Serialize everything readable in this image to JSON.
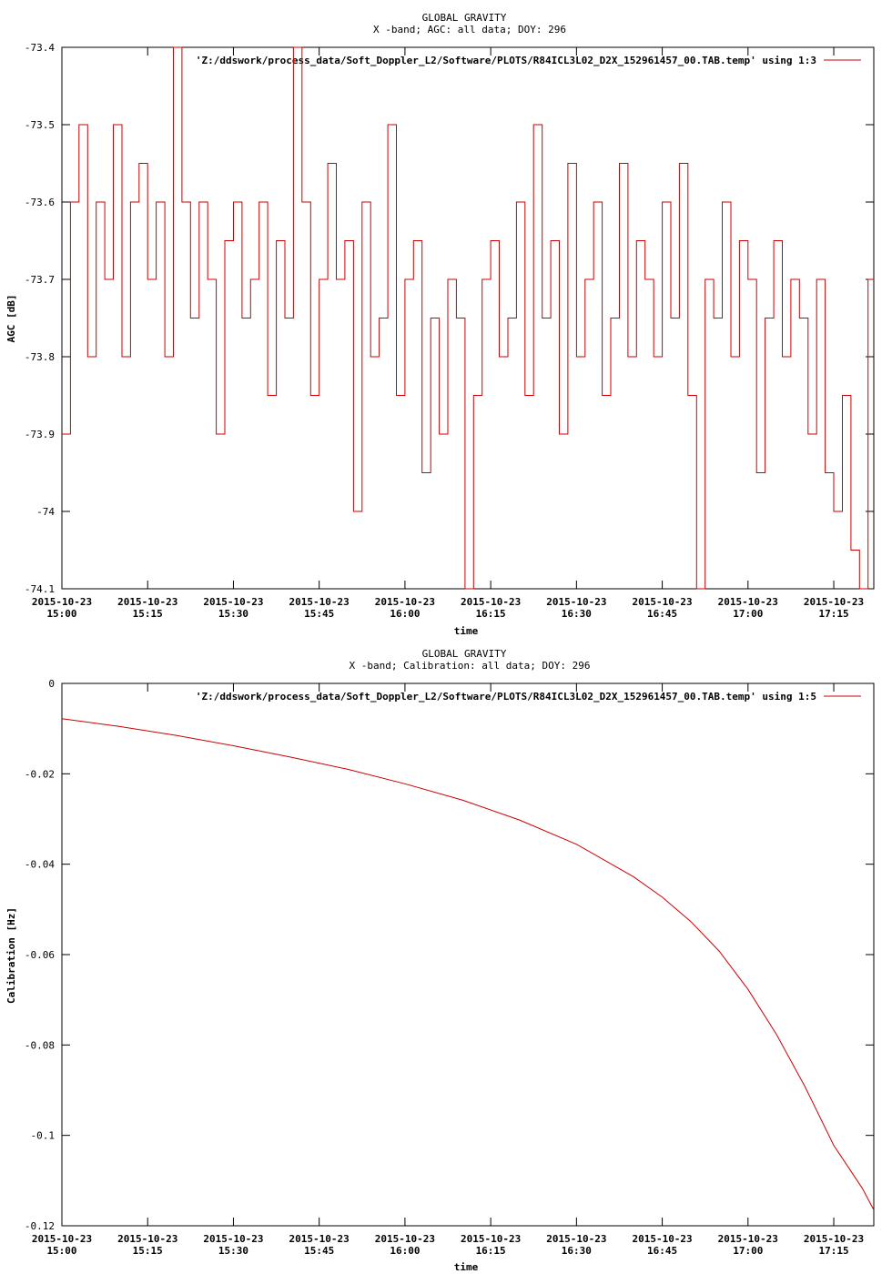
{
  "chart_data": [
    {
      "type": "line",
      "title": "GLOBAL GRAVITY",
      "subtitle": "X -band; AGC: all data; DOY: 296",
      "xlabel": "time",
      "ylabel": "AGC [dB]",
      "ylim": [
        -74.1,
        -73.4
      ],
      "yticks": [
        -74.1,
        -74,
        -73.9,
        -73.8,
        -73.7,
        -73.6,
        -73.5,
        -73.4
      ],
      "ytick_labels": [
        "-74.1",
        "-74",
        "-73.9",
        "-73.8",
        "-73.7",
        "-73.6",
        "-73.5",
        "-73.4"
      ],
      "xlim_minutes": [
        0,
        142
      ],
      "xticks_minutes": [
        0,
        15,
        30,
        45,
        60,
        75,
        90,
        105,
        120,
        135
      ],
      "xtick_labels": [
        [
          "2015-10-23",
          "15:00"
        ],
        [
          "2015-10-23",
          "15:15"
        ],
        [
          "2015-10-23",
          "15:30"
        ],
        [
          "2015-10-23",
          "15:45"
        ],
        [
          "2015-10-23",
          "16:00"
        ],
        [
          "2015-10-23",
          "16:15"
        ],
        [
          "2015-10-23",
          "16:30"
        ],
        [
          "2015-10-23",
          "16:45"
        ],
        [
          "2015-10-23",
          "17:00"
        ],
        [
          "2015-10-23",
          "17:15"
        ]
      ],
      "grid": false,
      "legend_position": "top-right",
      "series": [
        {
          "name": "'Z:/ddswork/process_data/Soft_Doppler_L2/Software/PLOTS/R84ICL3L02_D2X_152961457_00.TAB.temp' using 1:3",
          "color": "#cc0000",
          "style": "steps",
          "x_minutes": [
            0,
            1.5,
            3,
            4.5,
            6,
            7.5,
            9,
            10.5,
            12,
            13.5,
            15,
            16.5,
            18,
            19.5,
            21,
            22.5,
            24,
            25.5,
            27,
            28.5,
            30,
            31.5,
            33,
            34.5,
            36,
            37.5,
            39,
            40.5,
            42,
            43.5,
            45,
            46.5,
            48,
            49.5,
            51,
            52.5,
            54,
            55.5,
            57,
            58.5,
            60,
            61.5,
            63,
            64.5,
            66,
            67.5,
            69,
            70.5,
            72,
            73.5,
            75,
            76.5,
            78,
            79.5,
            81,
            82.5,
            84,
            85.5,
            87,
            88.5,
            90,
            91.5,
            93,
            94.5,
            96,
            97.5,
            99,
            100.5,
            102,
            103.5,
            105,
            106.5,
            108,
            109.5,
            111,
            112.5,
            114,
            115.5,
            117,
            118.5,
            120,
            121.5,
            123,
            124.5,
            126,
            127.5,
            129,
            130.5,
            132,
            133.5,
            135,
            136.5,
            138,
            139.5,
            141
          ],
          "values": [
            -73.9,
            -73.6,
            -73.5,
            -73.8,
            -73.6,
            -73.7,
            -73.5,
            -73.8,
            -73.6,
            -73.55,
            -73.7,
            -73.6,
            -73.8,
            -73.4,
            -73.6,
            -73.75,
            -73.6,
            -73.7,
            -73.9,
            -73.65,
            -73.6,
            -73.75,
            -73.7,
            -73.6,
            -73.85,
            -73.65,
            -73.75,
            -73.4,
            -73.6,
            -73.85,
            -73.7,
            -73.55,
            -73.7,
            -73.65,
            -74.0,
            -73.6,
            -73.8,
            -73.75,
            -73.5,
            -73.85,
            -73.7,
            -73.65,
            -73.95,
            -73.75,
            -73.9,
            -73.7,
            -73.75,
            -74.1,
            -73.85,
            -73.7,
            -73.65,
            -73.8,
            -73.75,
            -73.6,
            -73.85,
            -73.5,
            -73.75,
            -73.65,
            -73.9,
            -73.55,
            -73.8,
            -73.7,
            -73.6,
            -73.85,
            -73.75,
            -73.55,
            -73.8,
            -73.65,
            -73.7,
            -73.8,
            -73.6,
            -73.75,
            -73.55,
            -73.85,
            -74.1,
            -73.7,
            -73.75,
            -73.6,
            -73.8,
            -73.65,
            -73.7,
            -73.95,
            -73.75,
            -73.65,
            -73.8,
            -73.7,
            -73.75,
            -73.9,
            -73.7,
            -73.95,
            -74.0,
            -73.85,
            -74.05,
            -74.1,
            -73.7
          ]
        }
      ]
    },
    {
      "type": "line",
      "title": "GLOBAL GRAVITY",
      "subtitle": "X -band; Calibration: all data; DOY: 296",
      "xlabel": "time",
      "ylabel": "Calibration [Hz]",
      "ylim": [
        -0.12,
        0
      ],
      "yticks": [
        -0.12,
        -0.1,
        -0.08,
        -0.06,
        -0.04,
        -0.02,
        0
      ],
      "ytick_labels": [
        "-0.12",
        "-0.1",
        "-0.08",
        "-0.06",
        "-0.04",
        "-0.02",
        "0"
      ],
      "xlim_minutes": [
        0,
        142
      ],
      "xticks_minutes": [
        0,
        15,
        30,
        45,
        60,
        75,
        90,
        105,
        120,
        135
      ],
      "xtick_labels": [
        [
          "2015-10-23",
          "15:00"
        ],
        [
          "2015-10-23",
          "15:15"
        ],
        [
          "2015-10-23",
          "15:30"
        ],
        [
          "2015-10-23",
          "15:45"
        ],
        [
          "2015-10-23",
          "16:00"
        ],
        [
          "2015-10-23",
          "16:15"
        ],
        [
          "2015-10-23",
          "16:30"
        ],
        [
          "2015-10-23",
          "16:45"
        ],
        [
          "2015-10-23",
          "17:00"
        ],
        [
          "2015-10-23",
          "17:15"
        ]
      ],
      "grid": false,
      "legend_position": "top-right",
      "series": [
        {
          "name": "'Z:/ddswork/process_data/Soft_Doppler_L2/Software/PLOTS/R84ICL3L02_D2X_152961457_00.TAB.temp' using 1:5",
          "color": "#cc0000",
          "style": "line",
          "x_minutes": [
            0,
            10,
            20,
            30,
            40,
            50,
            60,
            70,
            80,
            90,
            100,
            105,
            110,
            115,
            120,
            125,
            130,
            135,
            140,
            142
          ],
          "values": [
            -0.0078,
            -0.0095,
            -0.0115,
            -0.0138,
            -0.0163,
            -0.019,
            -0.0222,
            -0.0258,
            -0.0302,
            -0.0356,
            -0.0428,
            -0.0473,
            -0.0527,
            -0.0593,
            -0.0677,
            -0.0777,
            -0.0893,
            -0.1022,
            -0.1117,
            -0.1165
          ]
        }
      ]
    }
  ]
}
